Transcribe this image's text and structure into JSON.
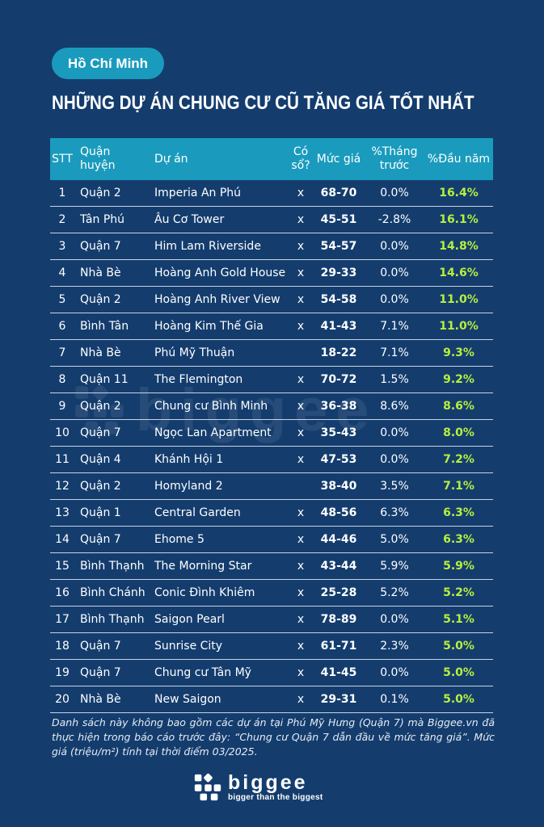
{
  "city_label": "Hồ Chí Minh",
  "headline": "NHỮNG DỰ ÁN CHUNG CƯ CŨ TĂNG GIÁ TỐT NHẤT",
  "table": {
    "headers": {
      "stt": "STT",
      "district": "Quận huyện",
      "project": "Dự án",
      "has_book": "Có sổ?",
      "price": "Mức giá",
      "pct_month": "%Tháng trước",
      "pct_year": "%Đầu năm"
    },
    "rows": [
      {
        "stt": "1",
        "district": "Quận 2",
        "project": "Imperia An Phú",
        "has_book": "x",
        "price": "68-70",
        "pct_month": "0.0%",
        "pct_year": "16.4%"
      },
      {
        "stt": "2",
        "district": "Tân Phú",
        "project": "Âu Cơ Tower",
        "has_book": "x",
        "price": "45-51",
        "pct_month": "-2.8%",
        "pct_year": "16.1%"
      },
      {
        "stt": "3",
        "district": "Quận 7",
        "project": "Him Lam Riverside",
        "has_book": "x",
        "price": "54-57",
        "pct_month": "0.0%",
        "pct_year": "14.8%"
      },
      {
        "stt": "4",
        "district": "Nhà Bè",
        "project": "Hoàng Anh Gold House",
        "has_book": "x",
        "price": "29-33",
        "pct_month": "0.0%",
        "pct_year": "14.6%"
      },
      {
        "stt": "5",
        "district": "Quận 2",
        "project": "Hoàng Anh River View",
        "has_book": "x",
        "price": "54-58",
        "pct_month": "0.0%",
        "pct_year": "11.0%"
      },
      {
        "stt": "6",
        "district": "Bình Tân",
        "project": "Hoàng Kim Thế Gia",
        "has_book": "x",
        "price": "41-43",
        "pct_month": "7.1%",
        "pct_year": "11.0%"
      },
      {
        "stt": "7",
        "district": "Nhà Bè",
        "project": "Phú Mỹ Thuận",
        "has_book": "",
        "price": "18-22",
        "pct_month": "7.1%",
        "pct_year": "9.3%"
      },
      {
        "stt": "8",
        "district": "Quận 11",
        "project": "The Flemington",
        "has_book": "x",
        "price": "70-72",
        "pct_month": "1.5%",
        "pct_year": "9.2%"
      },
      {
        "stt": "9",
        "district": "Quận 2",
        "project": "Chung cư Bình Minh",
        "has_book": "x",
        "price": "36-38",
        "pct_month": "8.6%",
        "pct_year": "8.6%"
      },
      {
        "stt": "10",
        "district": "Quận 7",
        "project": "Ngọc Lan Apartment",
        "has_book": "x",
        "price": "35-43",
        "pct_month": "0.0%",
        "pct_year": "8.0%"
      },
      {
        "stt": "11",
        "district": "Quận 4",
        "project": "Khánh Hội 1",
        "has_book": "x",
        "price": "47-53",
        "pct_month": "0.0%",
        "pct_year": "7.2%"
      },
      {
        "stt": "12",
        "district": "Quận 2",
        "project": "Homyland 2",
        "has_book": "",
        "price": "38-40",
        "pct_month": "3.5%",
        "pct_year": "7.1%"
      },
      {
        "stt": "13",
        "district": "Quận 1",
        "project": "Central Garden",
        "has_book": "x",
        "price": "48-56",
        "pct_month": "6.3%",
        "pct_year": "6.3%"
      },
      {
        "stt": "14",
        "district": "Quận 7",
        "project": "Ehome 5",
        "has_book": "x",
        "price": "44-46",
        "pct_month": "5.0%",
        "pct_year": "6.3%"
      },
      {
        "stt": "15",
        "district": "Bình Thạnh",
        "project": "The Morning Star",
        "has_book": "x",
        "price": "43-44",
        "pct_month": "5.9%",
        "pct_year": "5.9%"
      },
      {
        "stt": "16",
        "district": "Bình Chánh",
        "project": "Conic Đình Khiêm",
        "has_book": "x",
        "price": "25-28",
        "pct_month": "5.2%",
        "pct_year": "5.2%"
      },
      {
        "stt": "17",
        "district": "Bình Thạnh",
        "project": "Saigon Pearl",
        "has_book": "x",
        "price": "78-89",
        "pct_month": "0.0%",
        "pct_year": "5.1%"
      },
      {
        "stt": "18",
        "district": "Quận 7",
        "project": "Sunrise City",
        "has_book": "x",
        "price": "61-71",
        "pct_month": "2.3%",
        "pct_year": "5.0%"
      },
      {
        "stt": "19",
        "district": "Quận 7",
        "project": "Chung cư Tân Mỹ",
        "has_book": "x",
        "price": "41-45",
        "pct_month": "0.0%",
        "pct_year": "5.0%"
      },
      {
        "stt": "20",
        "district": "Nhà Bè",
        "project": "New Saigon",
        "has_book": "x",
        "price": "29-31",
        "pct_month": "0.1%",
        "pct_year": "5.0%"
      }
    ]
  },
  "footnote": "Danh sách này không bao gồm các dự án tại Phú Mỹ Hưng (Quận 7) mà Biggee.vn đã thực hiện trong báo cáo trước đây: “Chung cư Quận 7 dẫn đầu về mức tăng giá”. Mức giá (triệu/m²) tính tại thời điểm 03/2025.",
  "brand": {
    "wordmark": "biggee",
    "tagline": "bigger than the biggest",
    "icon": "biggee-logo-icon"
  },
  "colors": {
    "background": "#143d6e",
    "accent": "#1a9bbd",
    "highlight": "#b7ef3f"
  }
}
